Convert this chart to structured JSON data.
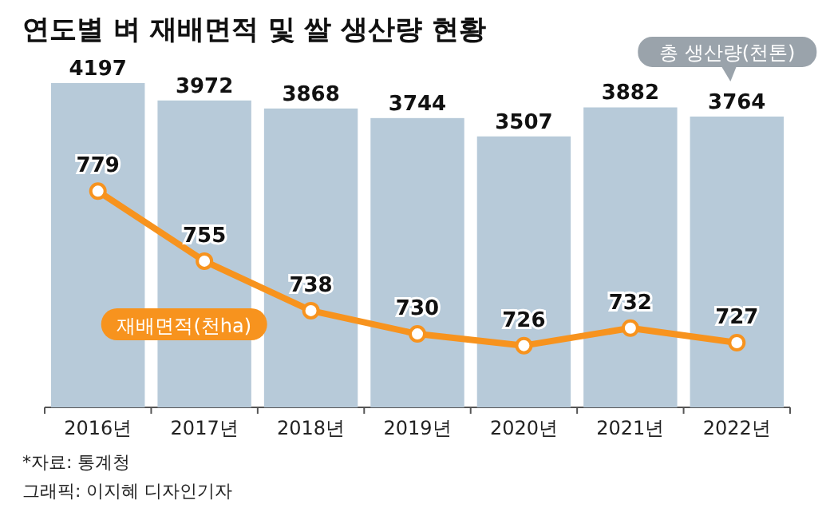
{
  "chart_data": {
    "type": "bar",
    "title": "연도별 벼 재배면적 및 쌀 생산량 현황",
    "categories": [
      "2016년",
      "2017년",
      "2018년",
      "2019년",
      "2020년",
      "2021년",
      "2022년"
    ],
    "series": [
      {
        "name": "총 생산량(천톤)",
        "color": "#b7cad9",
        "values": [
          4197,
          3972,
          3868,
          3744,
          3507,
          3882,
          3764
        ]
      },
      {
        "name": "재배면적(천ha)",
        "type": "line",
        "axis": "y2",
        "color": "#f7931e",
        "values": [
          779,
          755,
          738,
          730,
          726,
          732,
          727
        ]
      }
    ],
    "tick_labels": "x",
    "data_labels": true,
    "legend": false,
    "marker": "circle",
    "line_style": "solid",
    "annotations": [
      "*자료: 통계청",
      "그래픽: 이지혜 디자인기자"
    ]
  }
}
